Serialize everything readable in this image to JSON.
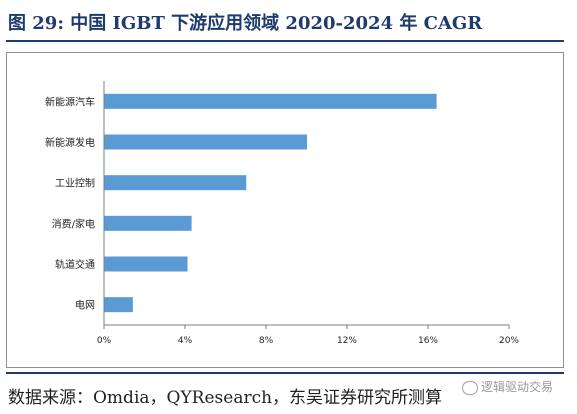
{
  "title": "图 29:  中国 IGBT 下游应用领域 2020-2024 年 CAGR",
  "source": "数据来源：Omdia，QYResearch，东吴证券研究所测算",
  "watermark": "逻辑驱动交易",
  "colors": {
    "bar": "#5b9bd5",
    "rule": "#1f3b6e",
    "axis": "#7f7f7f"
  },
  "chart_data": {
    "type": "bar",
    "orientation": "horizontal",
    "categories": [
      "新能源汽车",
      "新能源发电",
      "工业控制",
      "消费/家电",
      "轨道交通",
      "电网"
    ],
    "values": [
      16.4,
      10.0,
      7.0,
      4.3,
      4.1,
      1.4
    ],
    "value_unit": "%",
    "xlim": [
      0,
      20
    ],
    "xticks": [
      0,
      4,
      8,
      12,
      16,
      20
    ],
    "xtick_labels": [
      "0%",
      "4%",
      "8%",
      "12%",
      "16%",
      "20%"
    ],
    "grid": false,
    "legend": "none",
    "title": "",
    "xlabel": "",
    "ylabel": ""
  }
}
